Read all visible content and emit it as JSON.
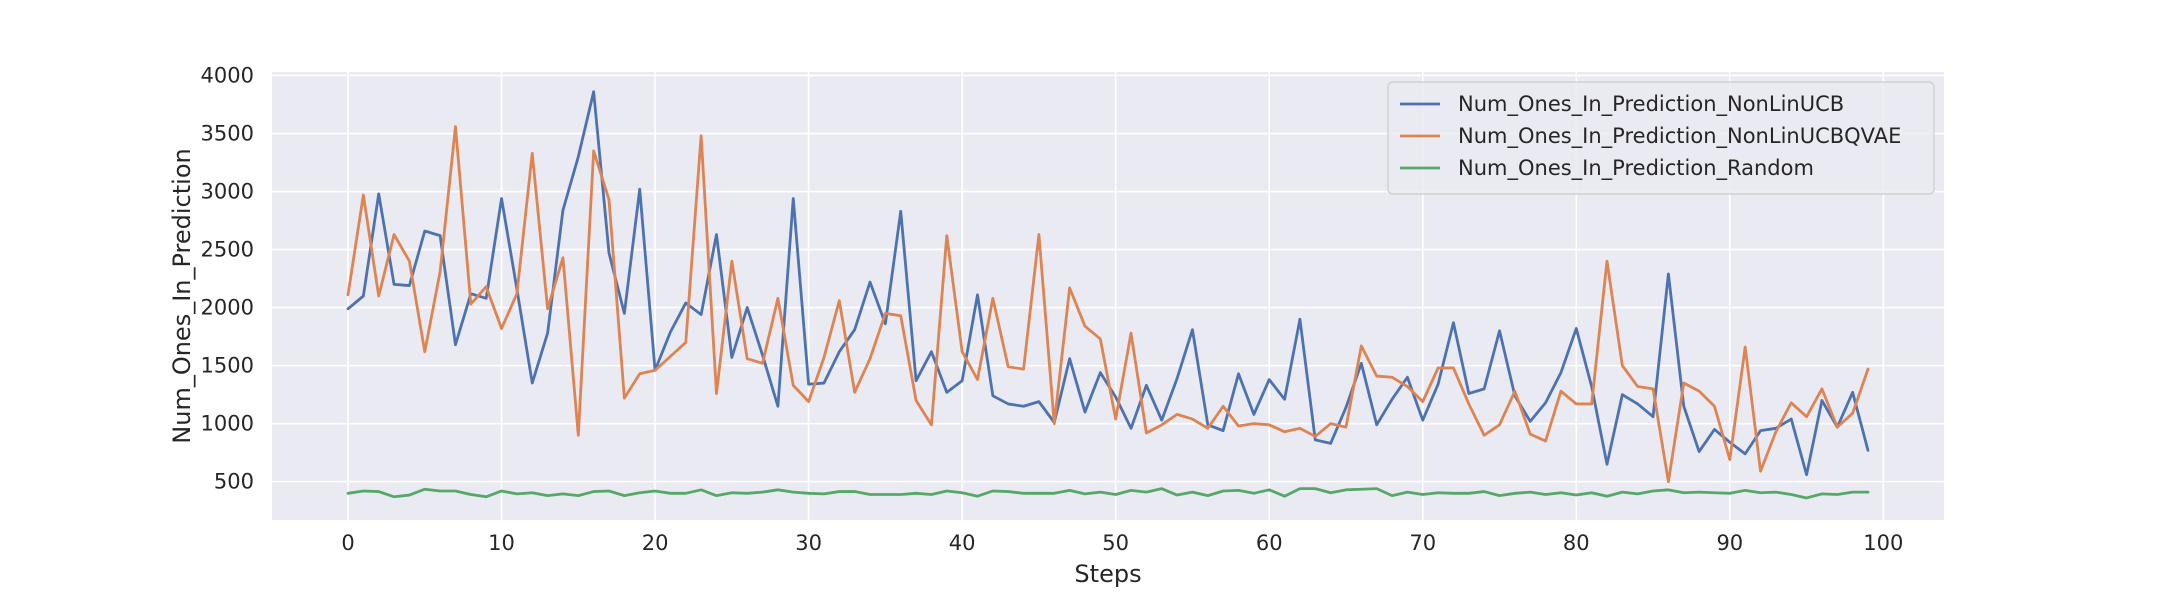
{
  "chart_data": {
    "type": "line",
    "title": "",
    "xlabel": "Steps",
    "ylabel": "Num_Ones_In_Prediction",
    "xlim": [
      -4.95,
      103.95
    ],
    "ylim": [
      170,
      4030
    ],
    "xticks": [
      0,
      10,
      20,
      30,
      40,
      50,
      60,
      70,
      80,
      90,
      100
    ],
    "yticks": [
      500,
      1000,
      1500,
      2000,
      2500,
      3000,
      3500,
      4000
    ],
    "grid": true,
    "legend_position": "top-right",
    "x": [
      0,
      1,
      2,
      3,
      4,
      5,
      6,
      7,
      8,
      9,
      10,
      11,
      12,
      13,
      14,
      15,
      16,
      17,
      18,
      19,
      20,
      21,
      22,
      23,
      24,
      25,
      26,
      27,
      28,
      29,
      30,
      31,
      32,
      33,
      34,
      35,
      36,
      37,
      38,
      39,
      40,
      41,
      42,
      43,
      44,
      45,
      46,
      47,
      48,
      49,
      50,
      51,
      52,
      53,
      54,
      55,
      56,
      57,
      58,
      59,
      60,
      61,
      62,
      63,
      64,
      65,
      66,
      67,
      68,
      69,
      70,
      71,
      72,
      73,
      74,
      75,
      76,
      77,
      78,
      79,
      80,
      81,
      82,
      83,
      84,
      85,
      86,
      87,
      88,
      89,
      90,
      91,
      92,
      93,
      94,
      95,
      96,
      97,
      98,
      99
    ],
    "series": [
      {
        "name": "Num_Ones_In_Prediction_NonLinUCB",
        "color": "#4c72b0",
        "values": [
          1990,
          2100,
          2980,
          2200,
          2190,
          2660,
          2620,
          1680,
          2120,
          2080,
          2940,
          2160,
          1350,
          1780,
          2840,
          3300,
          3860,
          2470,
          1950,
          3020,
          1460,
          1790,
          2040,
          1940,
          2630,
          1570,
          2000,
          1590,
          1150,
          2940,
          1340,
          1350,
          1620,
          1810,
          2220,
          1860,
          2830,
          1370,
          1620,
          1270,
          1370,
          2110,
          1240,
          1170,
          1150,
          1190,
          1010,
          1560,
          1100,
          1440,
          1230,
          960,
          1330,
          1030,
          1390,
          1810,
          990,
          940,
          1430,
          1080,
          1380,
          1210,
          1900,
          860,
          830,
          1140,
          1520,
          990,
          1210,
          1400,
          1030,
          1340,
          1870,
          1260,
          1300,
          1800,
          1240,
          1020,
          1180,
          1440,
          1820,
          1320,
          650,
          1250,
          1170,
          1060,
          2290,
          1150,
          760,
          950,
          840,
          740,
          940,
          960,
          1040,
          560,
          1200,
          970,
          1270,
          770
        ]
      },
      {
        "name": "Num_Ones_In_Prediction_NonLinUCBQVAE",
        "color": "#dd8452",
        "values": [
          2110,
          2970,
          2100,
          2630,
          2400,
          1620,
          2310,
          3560,
          2030,
          2180,
          1820,
          2120,
          3330,
          1990,
          2430,
          900,
          3350,
          2930,
          1220,
          1430,
          1460,
          1580,
          1700,
          3480,
          1260,
          2400,
          1560,
          1520,
          2080,
          1330,
          1190,
          1570,
          2060,
          1270,
          1560,
          1950,
          1930,
          1200,
          990,
          2620,
          1620,
          1380,
          2080,
          1490,
          1470,
          2630,
          1000,
          2170,
          1840,
          1730,
          1040,
          1780,
          920,
          990,
          1080,
          1040,
          960,
          1150,
          980,
          1000,
          990,
          930,
          960,
          890,
          1000,
          970,
          1670,
          1410,
          1400,
          1320,
          1190,
          1480,
          1480,
          1170,
          900,
          990,
          1280,
          910,
          850,
          1280,
          1170,
          1170,
          2400,
          1500,
          1320,
          1300,
          500,
          1350,
          1280,
          1150,
          690,
          1660,
          590,
          930,
          1180,
          1060,
          1300,
          970,
          1090,
          1470
        ]
      },
      {
        "name": "Num_Ones_In_Prediction_Random",
        "color": "#55a868",
        "values": [
          400,
          420,
          415,
          370,
          385,
          435,
          420,
          420,
          390,
          370,
          420,
          395,
          405,
          380,
          395,
          380,
          415,
          420,
          380,
          405,
          420,
          400,
          400,
          430,
          380,
          405,
          400,
          410,
          430,
          410,
          400,
          395,
          415,
          415,
          390,
          390,
          390,
          400,
          390,
          420,
          405,
          375,
          420,
          415,
          400,
          400,
          400,
          425,
          395,
          410,
          390,
          425,
          410,
          440,
          385,
          410,
          380,
          420,
          425,
          400,
          430,
          375,
          440,
          440,
          405,
          430,
          435,
          440,
          380,
          410,
          390,
          405,
          400,
          400,
          415,
          380,
          400,
          410,
          390,
          405,
          385,
          405,
          375,
          410,
          395,
          420,
          430,
          405,
          410,
          405,
          400,
          425,
          405,
          410,
          390,
          360,
          395,
          390,
          410,
          410
        ]
      }
    ]
  }
}
